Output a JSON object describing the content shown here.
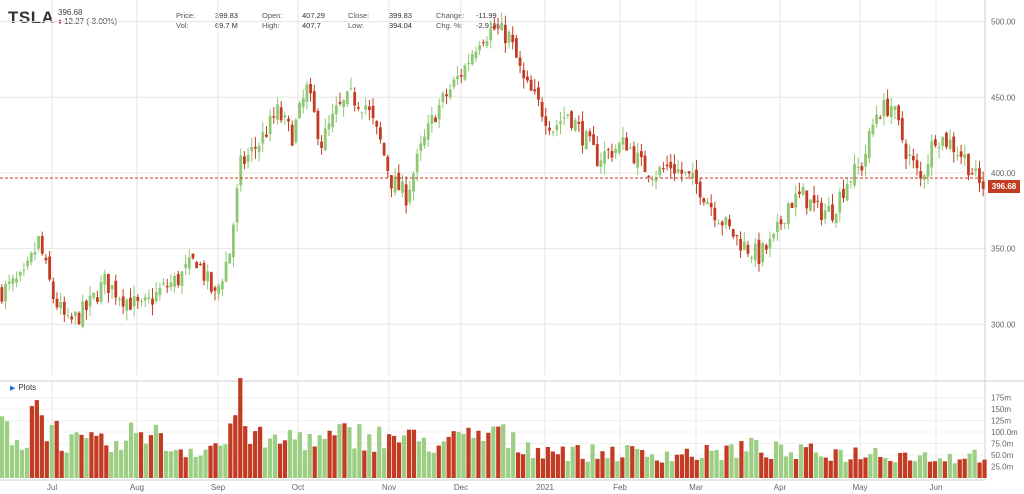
{
  "header": {
    "ticker": "TSLA",
    "last": "396.68",
    "change": "12.27 (-3.00%)",
    "stats": [
      {
        "label": "Price:",
        "value": "399.83"
      },
      {
        "label": "Vol:",
        "value": "69.7 M"
      },
      {
        "label": "Open:",
        "value": "407.29"
      },
      {
        "label": "High:",
        "value": "407.7"
      },
      {
        "label": "Close:",
        "value": "399.83"
      },
      {
        "label": "Low:",
        "value": "394.04"
      },
      {
        "label": "Change:",
        "value": "-11.99"
      },
      {
        "label": "Chg. %:",
        "value": "-2.91%"
      }
    ]
  },
  "plots_label": "Plots",
  "colors": {
    "up": "#8fc873",
    "down": "#c23b22",
    "volume_up": "#9ccf84",
    "volume_down": "#c23b22",
    "grid": "#e6e6e6",
    "price_line": "#c23b22"
  },
  "chart_data": [
    {
      "type": "candlestick",
      "x_labels": [
        "Jul",
        "Aug",
        "Sep",
        "Oct",
        "Nov",
        "Dec",
        "2021",
        "Feb",
        "Mar",
        "Apr",
        "May",
        "Jun"
      ],
      "y_ticks": [
        "500.00",
        "450.00",
        "400.00",
        "350.00",
        "300.00"
      ],
      "ylim": [
        285,
        505
      ],
      "current_price": "396.68",
      "close_path": [
        [
          0,
          322
        ],
        [
          6,
          330
        ],
        [
          10,
          355
        ],
        [
          14,
          318
        ],
        [
          18,
          300
        ],
        [
          23,
          310
        ],
        [
          28,
          328
        ],
        [
          33,
          318
        ],
        [
          38,
          310
        ],
        [
          43,
          322
        ],
        [
          48,
          330
        ],
        [
          53,
          343
        ],
        [
          58,
          318
        ],
        [
          62,
          348
        ],
        [
          65,
          405
        ],
        [
          70,
          420
        ],
        [
          75,
          440
        ],
        [
          79,
          425
        ],
        [
          83,
          455
        ],
        [
          87,
          420
        ],
        [
          91,
          440
        ],
        [
          95,
          450
        ],
        [
          99,
          445
        ],
        [
          103,
          420
        ],
        [
          106,
          395
        ],
        [
          110,
          385
        ],
        [
          114,
          415
        ],
        [
          118,
          440
        ],
        [
          122,
          455
        ],
        [
          126,
          470
        ],
        [
          130,
          490
        ],
        [
          134,
          495
        ],
        [
          138,
          490
        ],
        [
          142,
          460
        ],
        [
          146,
          445
        ],
        [
          150,
          430
        ],
        [
          154,
          440
        ],
        [
          158,
          425
        ],
        [
          162,
          410
        ],
        [
          166,
          415
        ],
        [
          170,
          420
        ],
        [
          174,
          405
        ],
        [
          178,
          400
        ],
        [
          182,
          405
        ],
        [
          186,
          398
        ],
        [
          190,
          390
        ],
        [
          194,
          375
        ],
        [
          198,
          362
        ],
        [
          202,
          352
        ],
        [
          206,
          345
        ],
        [
          210,
          355
        ],
        [
          214,
          380
        ],
        [
          218,
          385
        ],
        [
          222,
          375
        ],
        [
          226,
          375
        ],
        [
          230,
          395
        ],
        [
          234,
          405
        ],
        [
          238,
          440
        ],
        [
          242,
          445
        ],
        [
          246,
          415
        ],
        [
          250,
          395
        ],
        [
          254,
          425
        ],
        [
          258,
          420
        ],
        [
          262,
          410
        ],
        [
          266,
          392
        ]
      ]
    },
    {
      "type": "bar",
      "name": "Volume",
      "y_ticks": [
        "175m",
        "150m",
        "125m",
        "100.0m",
        "75.0m",
        "50.0m",
        "25.0m"
      ],
      "ylim": [
        0,
        185
      ],
      "volume_path": [
        [
          0,
          120
        ],
        [
          6,
          80
        ],
        [
          8,
          170
        ],
        [
          14,
          105
        ],
        [
          18,
          80
        ],
        [
          28,
          75
        ],
        [
          33,
          70
        ],
        [
          38,
          130
        ],
        [
          43,
          80
        ],
        [
          48,
          65
        ],
        [
          55,
          70
        ],
        [
          60,
          80
        ],
        [
          64,
          170
        ],
        [
          68,
          90
        ],
        [
          74,
          80
        ],
        [
          80,
          100
        ],
        [
          86,
          80
        ],
        [
          91,
          95
        ],
        [
          96,
          100
        ],
        [
          100,
          95
        ],
        [
          104,
          90
        ],
        [
          108,
          95
        ],
        [
          112,
          85
        ],
        [
          120,
          80
        ],
        [
          126,
          90
        ],
        [
          130,
          95
        ],
        [
          134,
          110
        ],
        [
          138,
          80
        ],
        [
          144,
          70
        ],
        [
          150,
          65
        ],
        [
          158,
          55
        ],
        [
          166,
          60
        ],
        [
          174,
          55
        ],
        [
          182,
          55
        ],
        [
          190,
          55
        ],
        [
          196,
          60
        ],
        [
          202,
          70
        ],
        [
          208,
          65
        ],
        [
          214,
          55
        ],
        [
          222,
          60
        ],
        [
          230,
          55
        ],
        [
          236,
          60
        ],
        [
          242,
          55
        ],
        [
          250,
          50
        ],
        [
          258,
          48
        ],
        [
          266,
          55
        ]
      ]
    }
  ]
}
